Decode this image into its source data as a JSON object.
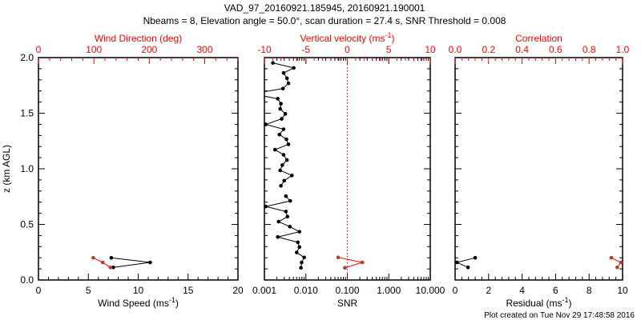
{
  "colors": {
    "axis": "#000000",
    "secondary": "#ff0000",
    "secondary_marker": "#b0402a"
  },
  "title_line1": "VAD_97_20160921.185945, 20160921.190001",
  "title_line2": "Nbeams = 8, Elevation angle = 50.0°, scan duration = 27.4 s, SNR Threshold = 0.008",
  "footer": "Plot created on Tue Nov 29 17:48:58 2016",
  "chart_data": [
    {
      "type": "line",
      "ylabel": "z (km AGL)",
      "ylim": [
        0,
        2.0
      ],
      "yticks": [
        "0.0",
        "0.5",
        "1.0",
        "1.5",
        "2.0"
      ],
      "bottom_axis": {
        "label": "Wind Speed (ms",
        "label_sup": "-1",
        "label_end": ")",
        "scale": "linear",
        "range": [
          0,
          20
        ],
        "ticks": [
          "0",
          "5",
          "10",
          "15",
          "20"
        ],
        "minor": 4
      },
      "top_axis": {
        "label": "Wind Direction (deg)",
        "scale": "linear",
        "range": [
          0,
          360
        ],
        "ticks": [
          "0",
          "100",
          "200",
          "300"
        ],
        "tick_values": [
          0,
          100,
          200,
          300
        ],
        "minor": 4
      },
      "series": [
        {
          "name": "Wind Speed",
          "axis": "bottom",
          "color": "#000000",
          "z": [
            0.2,
            0.158,
            0.113
          ],
          "values": [
            7.3,
            11.2,
            7.5
          ]
        },
        {
          "name": "Wind Direction",
          "axis": "top",
          "color": "#ff0000",
          "z": [
            0.2,
            0.158,
            0.113
          ],
          "values": [
            99,
            116,
            130
          ]
        }
      ]
    },
    {
      "type": "line",
      "ylim": [
        0,
        2.0
      ],
      "bottom_axis": {
        "label": "SNR",
        "scale": "log",
        "range": [
          0.001,
          10
        ],
        "ticks": [
          "0.001",
          "0.010",
          "0.100",
          "1.000",
          "10.000"
        ]
      },
      "top_axis": {
        "label": "Vertical velocity (ms",
        "label_sup": "-1",
        "label_end": ")",
        "scale": "linear",
        "range": [
          -10,
          10
        ],
        "ticks": [
          "-10",
          "-5",
          "0",
          "5",
          "10"
        ],
        "tick_values": [
          -10,
          -5,
          0,
          5,
          10
        ],
        "minor": 4,
        "zero_line": true
      },
      "series": [
        {
          "name": "SNR",
          "axis": "bottom",
          "color": "#000000",
          "z": [
            1.952,
            1.907,
            1.862,
            1.814,
            1.768,
            1.721,
            1.675,
            1.63,
            1.585,
            1.539,
            1.494,
            1.449,
            1.399,
            1.356,
            1.308,
            1.265,
            1.22,
            1.172,
            1.126,
            1.079,
            1.033,
            0.986,
            0.94,
            0.893,
            0.847,
            0.8,
            0.754,
            0.711,
            0.661,
            0.616,
            0.57,
            0.525,
            0.48,
            0.434,
            0.387,
            0.339,
            0.296,
            0.248,
            0.203,
            0.158,
            0.11
          ],
          "values": [
            0.0016,
            0.0051,
            0.0029,
            0.0035,
            0.0038,
            0.0028,
            0.0005,
            0.0021,
            0.0025,
            0.0024,
            0.0032,
            0.0026,
            0.00108,
            0.0029,
            0.0023,
            0.0034,
            0.0038,
            0.0018,
            0.0029,
            0.0035,
            0.0027,
            0.0024,
            0.0046,
            0.003,
            0.0025,
            null,
            0.0033,
            0.0042,
            0.00108,
            0.0033,
            0.0036,
            0.0022,
            0.0041,
            0.007,
            0.0021,
            0.0064,
            0.007,
            0.006,
            0.0091,
            0.0079,
            0.0076
          ]
        },
        {
          "name": "Vertical velocity",
          "axis": "top",
          "color": "#ff0000",
          "z": [
            0.203,
            0.158,
            0.11
          ],
          "values": [
            -1.1,
            1.8,
            -0.3
          ]
        }
      ]
    },
    {
      "type": "line",
      "ylim": [
        0,
        2.0
      ],
      "bottom_axis": {
        "label": "Residual (ms",
        "label_sup": "-1",
        "label_end": ")",
        "scale": "linear",
        "range": [
          0,
          10
        ],
        "ticks": [
          "0",
          "2",
          "4",
          "6",
          "8",
          "10"
        ],
        "minor": 4
      },
      "top_axis": {
        "label": "Correlation",
        "scale": "linear",
        "range": [
          0,
          1
        ],
        "ticks": [
          "0.0",
          "0.2",
          "0.4",
          "0.6",
          "0.8",
          "1.0"
        ],
        "tick_values": [
          0,
          0.2,
          0.4,
          0.6,
          0.8,
          1.0
        ],
        "minor": 4
      },
      "series": [
        {
          "name": "Residual",
          "axis": "bottom",
          "color": "#000000",
          "z": [
            0.2,
            0.158,
            0.113
          ],
          "values": [
            1.2,
            0.12,
            0.77
          ]
        },
        {
          "name": "Correlation",
          "axis": "top",
          "color": "#ff0000",
          "z": [
            0.2,
            0.158,
            0.113
          ],
          "values": [
            0.933,
            0.99,
            0.968
          ]
        }
      ]
    }
  ]
}
